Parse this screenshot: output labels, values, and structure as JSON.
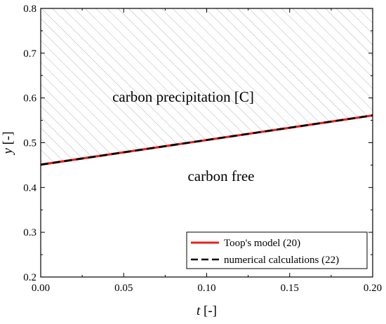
{
  "chart_data": {
    "type": "line",
    "xlabel_symbol": "t",
    "xlabel_unit": " [-]",
    "ylabel_symbol": "y",
    "ylabel_unit": " [-]",
    "xlim": [
      0.0,
      0.2
    ],
    "ylim": [
      0.2,
      0.8
    ],
    "x_ticks": [
      "0.00",
      "0.05",
      "0.10",
      "0.15",
      "0.20"
    ],
    "y_ticks": [
      "0.2",
      "0.3",
      "0.4",
      "0.5",
      "0.6",
      "0.7",
      "0.8"
    ],
    "x_tick_values": [
      0.0,
      0.05,
      0.1,
      0.15,
      0.2
    ],
    "y_tick_values": [
      0.2,
      0.3,
      0.4,
      0.5,
      0.6,
      0.7,
      0.8
    ],
    "grid": false,
    "legend_position": "bottom-right",
    "series": [
      {
        "name": "Toop's model (20)",
        "color": "#e8211d",
        "style": "solid",
        "x": [
          0.0,
          0.2
        ],
        "y": [
          0.451,
          0.561
        ]
      },
      {
        "name": "numerical calculations (22)",
        "color": "#000000",
        "style": "dashed",
        "x": [
          0.0,
          0.2
        ],
        "y": [
          0.451,
          0.561
        ]
      }
    ],
    "annotations": {
      "upper_region": "carbon precipitation [C]",
      "lower_region": "carbon free"
    },
    "hatch_region": "above boundary"
  }
}
